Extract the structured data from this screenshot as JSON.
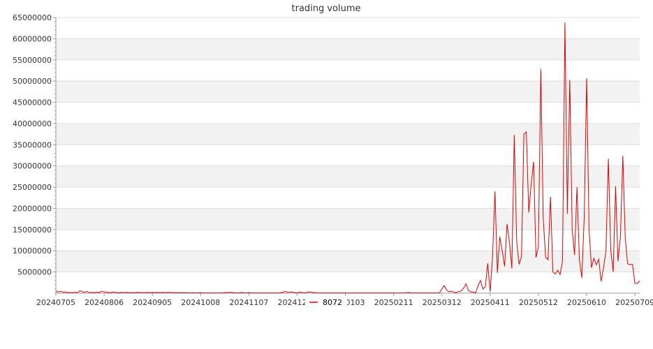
{
  "chart_data": {
    "type": "line",
    "title": "trading volume",
    "xlabel": "",
    "ylabel": "",
    "ylim": [
      0,
      65000000
    ],
    "yticks": [
      "5000000",
      "10000000",
      "15000000",
      "20000000",
      "25000000",
      "30000000",
      "35000000",
      "40000000",
      "45000000",
      "50000000",
      "55000000",
      "60000000",
      "65000000"
    ],
    "xticks": [
      {
        "label": "20240705",
        "index": 0
      },
      {
        "label": "20240806",
        "index": 20
      },
      {
        "label": "20240905",
        "index": 40
      },
      {
        "label": "20241008",
        "index": 60
      },
      {
        "label": "20241107",
        "index": 80
      },
      {
        "label": "20241205",
        "index": 100
      },
      {
        "label": "20250103",
        "index": 120
      },
      {
        "label": "20250211",
        "index": 140
      },
      {
        "label": "20250312",
        "index": 160
      },
      {
        "label": "20250411",
        "index": 180
      },
      {
        "label": "20250512",
        "index": 200
      },
      {
        "label": "20250610",
        "index": 220
      },
      {
        "label": "20250709",
        "index": 240
      }
    ],
    "grid": true,
    "background_bands": true,
    "legend_position": "bottom-center",
    "series": [
      {
        "name": "8072",
        "color": "#dd0000",
        "values": [
          500000,
          300000,
          450000,
          200000,
          300000,
          100000,
          150000,
          100000,
          200000,
          100000,
          600000,
          300000,
          200000,
          400000,
          100000,
          200000,
          100000,
          250000,
          150000,
          450000,
          300000,
          200000,
          150000,
          100000,
          300000,
          100000,
          100000,
          200000,
          100000,
          200000,
          150000,
          100000,
          150000,
          100000,
          200000,
          100000,
          150000,
          100000,
          200000,
          100000,
          200000,
          100000,
          200000,
          100000,
          200000,
          100000,
          150000,
          200000,
          150000,
          100000,
          100000,
          100000,
          150000,
          100000,
          100000,
          50000,
          50000,
          100000,
          50000,
          50000,
          150000,
          50000,
          50000,
          50000,
          50000,
          50000,
          50000,
          50000,
          50000,
          50000,
          150000,
          100000,
          200000,
          150000,
          100000,
          50000,
          50000,
          200000,
          50000,
          50000,
          150000,
          50000,
          50000,
          50000,
          50000,
          50000,
          50000,
          50000,
          50000,
          50000,
          50000,
          50000,
          50000,
          50000,
          200000,
          400000,
          250000,
          200000,
          300000,
          100000,
          50000,
          250000,
          150000,
          50000,
          200000,
          300000,
          200000,
          150000,
          50000,
          50000,
          50000,
          50000,
          50000,
          50000,
          50000,
          50000,
          50000,
          50000,
          50000,
          50000,
          50000,
          50000,
          50000,
          50000,
          50000,
          50000,
          50000,
          50000,
          50000,
          50000,
          50000,
          50000,
          50000,
          50000,
          50000,
          50000,
          50000,
          50000,
          50000,
          50000,
          50000,
          50000,
          50000,
          50000,
          50000,
          50000,
          200000,
          50000,
          50000,
          50000,
          50000,
          50000,
          50000,
          50000,
          50000,
          50000,
          50000,
          50000,
          50000,
          50000,
          1000000,
          1800000,
          700000,
          300000,
          500000,
          200000,
          100000,
          400000,
          500000,
          1200000,
          2200000,
          600000,
          300000,
          200000,
          100000,
          1800000,
          3000000,
          1000000,
          1500000,
          7000000,
          300000,
          8800000,
          24000000,
          4800000,
          13300000,
          10000000,
          6300000,
          16300000,
          12000000,
          5800000,
          37300000,
          12300000,
          6800000,
          8700000,
          37500000,
          38000000,
          19000000,
          25600000,
          31000000,
          8400000,
          11000000,
          52800000,
          17700000,
          8500000,
          7900000,
          22700000,
          5000000,
          4500000,
          5400000,
          4400000,
          7600000,
          63800000,
          18700000,
          50300000,
          15000000,
          9000000,
          25000000,
          7800000,
          3600000,
          18000000,
          50700000,
          15000000,
          6000000,
          8200000,
          6700000,
          8000000,
          2800000,
          6000000,
          10000000,
          31700000,
          10000000,
          5000000,
          25200000,
          7500000,
          13200000,
          32400000,
          12900000,
          6900000,
          6700000,
          6800000,
          2300000,
          2300000,
          2900000
        ]
      }
    ]
  }
}
